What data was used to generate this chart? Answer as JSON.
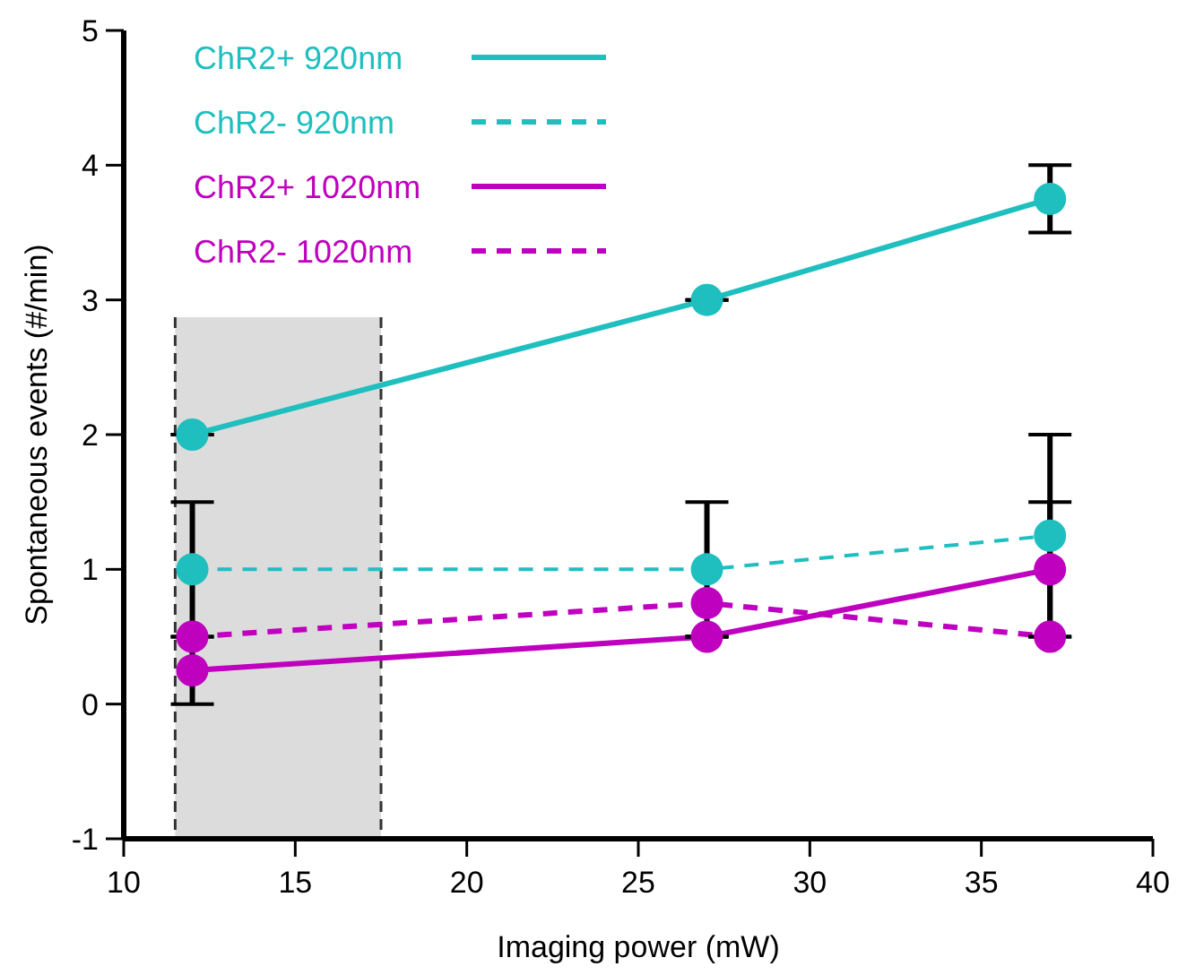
{
  "chart_data": {
    "type": "line",
    "xlabel": "Imaging power (mW)",
    "ylabel": "Spontaneous events (#/min)",
    "x": [
      12,
      27,
      37
    ],
    "xlim": [
      10,
      40
    ],
    "xticks": [
      10,
      15,
      20,
      25,
      30,
      35,
      40
    ],
    "ylim": [
      -1,
      5
    ],
    "yticks": [
      -1,
      0,
      1,
      2,
      3,
      4,
      5
    ],
    "marker": "circle",
    "legend": "top left",
    "grid": false,
    "bands": [
      {
        "axis": "x",
        "from": 11.5,
        "to": 17.5,
        "color": "#dcdcdc"
      }
    ],
    "ref_lines": [
      {
        "axis": "x",
        "value": 11.5,
        "color": "#333333",
        "line_style": "dashed"
      },
      {
        "axis": "x",
        "value": 17.5,
        "color": "#333333",
        "line_style": "dashed"
      }
    ],
    "series": [
      {
        "name": "ChR2+ 920nm",
        "color": "#1fbfbf",
        "values": [
          2,
          3,
          3.75
        ],
        "errors": [
          0,
          0,
          0.25
        ],
        "line_style": "solid"
      },
      {
        "name": "ChR2- 920nm",
        "color": "#1fbfbf",
        "values": [
          1,
          1,
          1.25
        ],
        "errors": [
          0.5,
          0.5,
          0.75
        ],
        "line_style": "dashed"
      },
      {
        "name": "ChR2+ 1020nm",
        "color": "#bf00bf",
        "values": [
          0.25,
          0.5,
          1
        ],
        "errors": [
          0.25,
          0,
          0.5
        ],
        "line_style": "solid"
      },
      {
        "name": "ChR2- 1020nm",
        "color": "#bf00bf",
        "values": [
          0.5,
          0.75,
          0.5
        ],
        "line_style": "dashed"
      }
    ]
  }
}
